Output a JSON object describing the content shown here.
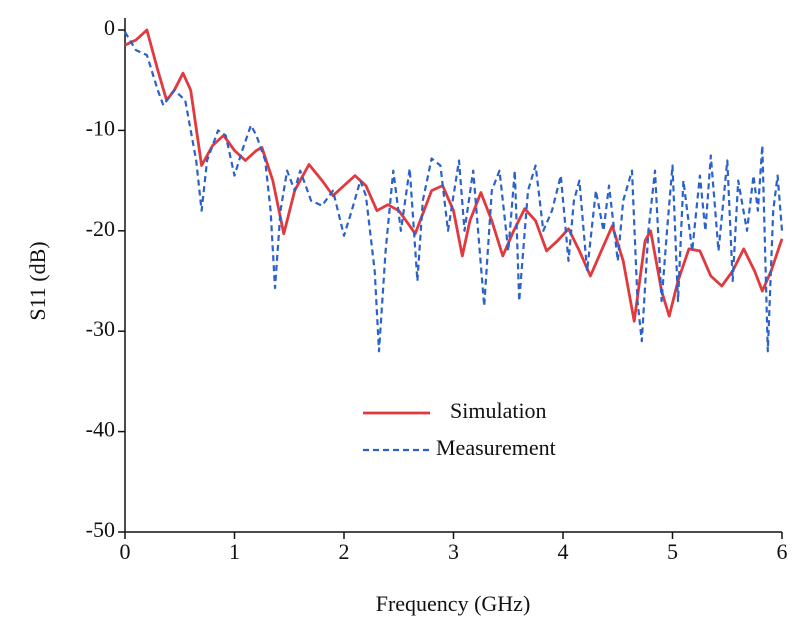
{
  "chart_data": {
    "type": "line",
    "xlabel": "Frequency (GHz)",
    "ylabel": "S11 (dB)",
    "xlim": [
      0,
      6
    ],
    "ylim": [
      -50,
      0
    ],
    "xticks": [
      0,
      1,
      2,
      3,
      4,
      5,
      6
    ],
    "yticks": [
      -50,
      -40,
      -30,
      -20,
      -10,
      0
    ],
    "grid": false,
    "series": [
      {
        "name": "Simulation",
        "color": "#e0393e",
        "style": "solid",
        "x": [
          0,
          0.1,
          0.2,
          0.3,
          0.38,
          0.45,
          0.53,
          0.6,
          0.7,
          0.8,
          0.9,
          1.0,
          1.1,
          1.2,
          1.25,
          1.35,
          1.45,
          1.55,
          1.68,
          1.8,
          1.9,
          2.0,
          2.1,
          2.2,
          2.3,
          2.4,
          2.5,
          2.6,
          2.65,
          2.8,
          2.9,
          3.0,
          3.08,
          3.15,
          3.25,
          3.35,
          3.45,
          3.55,
          3.65,
          3.75,
          3.85,
          3.95,
          4.05,
          4.15,
          4.25,
          4.35,
          4.45,
          4.55,
          4.65,
          4.75,
          4.8,
          4.9,
          4.97,
          5.05,
          5.15,
          5.25,
          5.35,
          5.45,
          5.55,
          5.65,
          5.75,
          5.82,
          5.9,
          6.0
        ],
        "values": [
          -1.5,
          -1,
          0,
          -4,
          -7,
          -6,
          -4.3,
          -6,
          -13.5,
          -11.5,
          -10.5,
          -12,
          -13,
          -12,
          -11.7,
          -15,
          -20.3,
          -16,
          -13.4,
          -15,
          -16.5,
          -15.5,
          -14.5,
          -15.5,
          -18,
          -17.4,
          -18,
          -19.5,
          -20.3,
          -16,
          -15.5,
          -18,
          -22.5,
          -19,
          -16.2,
          -19,
          -22.5,
          -20,
          -17.8,
          -19,
          -22,
          -21,
          -19.8,
          -22,
          -24.5,
          -22,
          -19.5,
          -23,
          -29,
          -21,
          -20,
          -26,
          -28.5,
          -25,
          -21.8,
          -22,
          -24.5,
          -25.5,
          -24,
          -21.8,
          -24,
          -26,
          -24,
          -20.8
        ]
      },
      {
        "name": "Measurement",
        "color": "#2b62c9",
        "style": "dashed",
        "x": [
          0,
          0.1,
          0.2,
          0.3,
          0.35,
          0.45,
          0.55,
          0.6,
          0.65,
          0.7,
          0.75,
          0.85,
          0.92,
          1.0,
          1.07,
          1.15,
          1.2,
          1.28,
          1.33,
          1.37,
          1.42,
          1.48,
          1.55,
          1.6,
          1.7,
          1.8,
          1.9,
          2.0,
          2.07,
          2.15,
          2.2,
          2.28,
          2.32,
          2.38,
          2.45,
          2.52,
          2.6,
          2.67,
          2.72,
          2.8,
          2.88,
          2.95,
          3.05,
          3.1,
          3.18,
          3.28,
          3.35,
          3.42,
          3.5,
          3.56,
          3.6,
          3.68,
          3.75,
          3.82,
          3.9,
          3.98,
          4.05,
          4.1,
          4.15,
          4.22,
          4.3,
          4.37,
          4.42,
          4.5,
          4.55,
          4.63,
          4.68,
          4.72,
          4.78,
          4.84,
          4.9,
          4.95,
          5.0,
          5.05,
          5.1,
          5.18,
          5.25,
          5.3,
          5.35,
          5.42,
          5.5,
          5.55,
          5.6,
          5.68,
          5.74,
          5.78,
          5.82,
          5.87,
          5.92,
          5.96,
          6.0
        ],
        "values": [
          -0.2,
          -2,
          -2.5,
          -6,
          -7.5,
          -6,
          -7,
          -10,
          -13,
          -18,
          -13,
          -10,
          -10.5,
          -14.5,
          -12,
          -9.5,
          -10.5,
          -13,
          -18,
          -25.7,
          -18,
          -14,
          -16,
          -14,
          -17,
          -17.5,
          -16,
          -20.5,
          -18,
          -15,
          -16.5,
          -24,
          -32,
          -22,
          -14,
          -20,
          -13.8,
          -25,
          -17,
          -12.8,
          -13.5,
          -20,
          -13,
          -20,
          -14,
          -27.5,
          -16,
          -14,
          -22,
          -14,
          -27,
          -16,
          -13.5,
          -20,
          -18,
          -14.5,
          -23,
          -17,
          -15,
          -24,
          -16,
          -20,
          -15.5,
          -23,
          -17,
          -14,
          -27,
          -31,
          -20,
          -14,
          -27,
          -20,
          -13.5,
          -27,
          -15,
          -22,
          -14.5,
          -20,
          -12.5,
          -22,
          -13,
          -25,
          -15,
          -20,
          -14.5,
          -18,
          -11.5,
          -32,
          -18,
          -14.5,
          -20
        ]
      }
    ]
  }
}
